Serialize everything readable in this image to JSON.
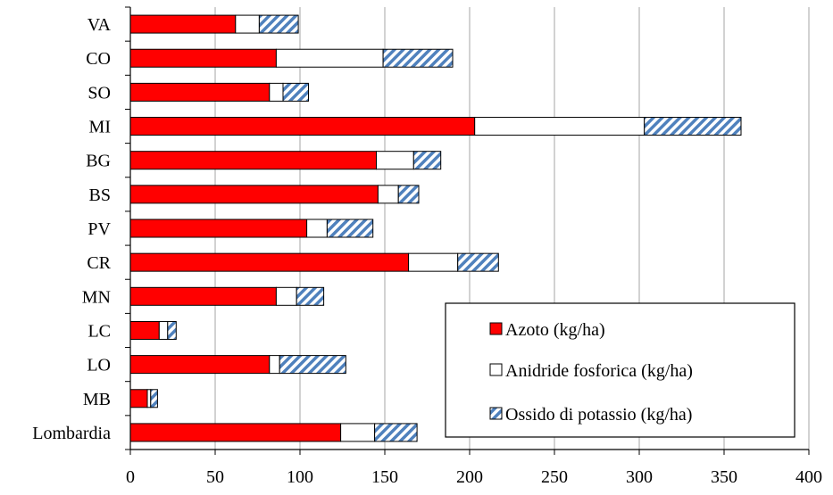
{
  "chart_data": {
    "type": "bar",
    "orientation": "horizontal",
    "stacked": true,
    "categories": [
      "VA",
      "CO",
      "SO",
      "MI",
      "BG",
      "BS",
      "PV",
      "CR",
      "MN",
      "LC",
      "LO",
      "MB",
      "Lombardia"
    ],
    "series": [
      {
        "name": "Azoto (kg/ha)",
        "color": "#ff0000",
        "pattern": "solid",
        "values": [
          62,
          86,
          82,
          203,
          145,
          146,
          104,
          164,
          86,
          17,
          82,
          10,
          124
        ]
      },
      {
        "name": "Anidride fosforica (kg/ha)",
        "color": "#ffffff",
        "pattern": "solid",
        "values": [
          14,
          63,
          8,
          100,
          22,
          12,
          12,
          29,
          12,
          5,
          6,
          2,
          20
        ]
      },
      {
        "name": "Ossido di potassio (kg/ha)",
        "color": "#4f81bd",
        "pattern": "diagonal-hatch",
        "values": [
          23,
          41,
          15,
          57,
          16,
          12,
          27,
          24,
          16,
          5,
          39,
          4,
          25
        ]
      }
    ],
    "xlim": [
      0,
      400
    ],
    "xticks": [
      "0",
      "50",
      "100",
      "150",
      "200",
      "250",
      "300",
      "350",
      "400"
    ],
    "title": "",
    "xlabel": "",
    "ylabel": "",
    "grid": "vertical",
    "legend_position": "bottom-right"
  }
}
